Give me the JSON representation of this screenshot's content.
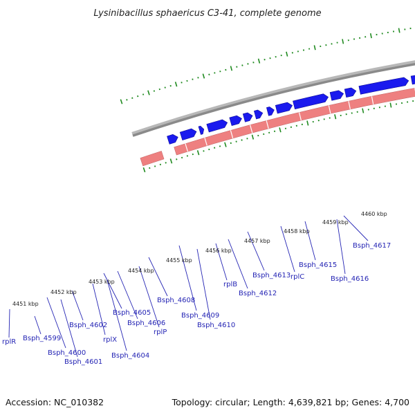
{
  "title": "Lysinibacillus sphaericus C3-41, complete genome",
  "footer": {
    "accession": "Accession: NC_010382",
    "info": "Topology: circular; Length: 4,639,821 bp; Genes: 4,700"
  },
  "colors": {
    "gene": "#1a1aee",
    "rna": "#ee8080",
    "grey_gene": "#b9b9b9",
    "axis": "#8a8a8a",
    "tick": "#1f8a1f",
    "label": "#2424b4"
  },
  "ticks": [
    {
      "label": "4451 kbp"
    },
    {
      "label": "4452 kbp"
    },
    {
      "label": "4453 kbp"
    },
    {
      "label": "4454 kbp"
    },
    {
      "label": "4455 kbp"
    },
    {
      "label": "4456 kbp"
    },
    {
      "label": "4457 kbp"
    },
    {
      "label": "4458 kbp"
    },
    {
      "label": "4459 kbp"
    },
    {
      "label": "4460 kbp"
    }
  ],
  "genes": [
    {
      "label": "rplR"
    },
    {
      "label": "Bsph_4599"
    },
    {
      "label": "Bsph_4600"
    },
    {
      "label": "Bsph_4601"
    },
    {
      "label": "Bsph_4602"
    },
    {
      "label": "rplX"
    },
    {
      "label": "Bsph_4604"
    },
    {
      "label": "Bsph_4605"
    },
    {
      "label": "Bsph_4606"
    },
    {
      "label": "rplP"
    },
    {
      "label": "Bsph_4608"
    },
    {
      "label": "Bsph_4609"
    },
    {
      "label": "Bsph_4610"
    },
    {
      "label": "rplB"
    },
    {
      "label": "Bsph_4612"
    },
    {
      "label": "Bsph_4613"
    },
    {
      "label": "rplC"
    },
    {
      "label": "Bsph_4615"
    },
    {
      "label": "Bsph_4616"
    },
    {
      "label": "Bsph_4617"
    }
  ]
}
